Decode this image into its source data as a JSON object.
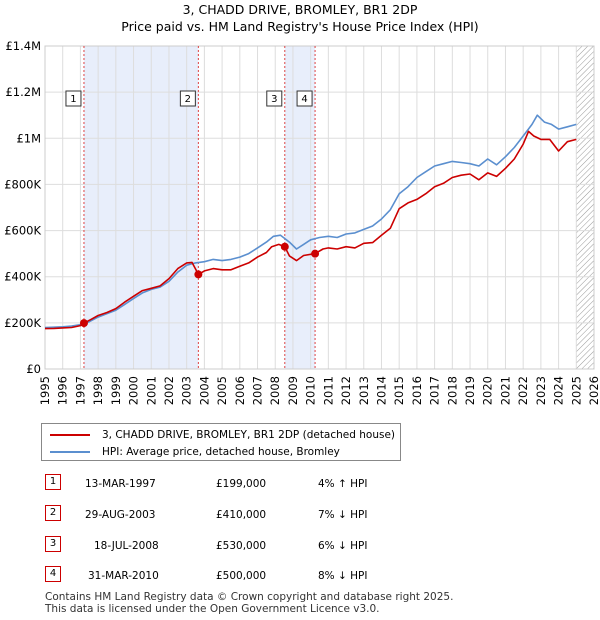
{
  "title": "3, CHADD DRIVE, BROMLEY, BR1 2DP",
  "subtitle": "Price paid vs. HM Land Registry's House Price Index (HPI)",
  "colors": {
    "price_paid": "#cc0000",
    "hpi": "#5b8fcf",
    "shade": "#e8eefb",
    "grid": "#dddddd"
  },
  "chart_data": {
    "type": "line",
    "title": "3, CHADD DRIVE, BROMLEY, BR1 2DP",
    "subtitle": "Price paid vs. HM Land Registry's House Price Index (HPI)",
    "xlim": [
      1995,
      2026
    ],
    "ylim": [
      0,
      1400000
    ],
    "x_ticks": [
      1995,
      1996,
      1997,
      1998,
      1999,
      2000,
      2001,
      2002,
      2003,
      2004,
      2005,
      2006,
      2007,
      2008,
      2009,
      2010,
      2011,
      2012,
      2013,
      2014,
      2015,
      2016,
      2017,
      2018,
      2019,
      2020,
      2021,
      2022,
      2023,
      2024,
      2025,
      2026
    ],
    "x_tick_labels": [
      "1995",
      "1996",
      "1997",
      "1998",
      "1999",
      "2000",
      "2001",
      "2002",
      "2003",
      "2004",
      "2005",
      "2006",
      "2007",
      "2008",
      "2009",
      "2010",
      "2011",
      "2012",
      "2013",
      "2014",
      "2015",
      "2016",
      "2017",
      "2018",
      "2019",
      "2020",
      "2021",
      "2022",
      "2023",
      "2024",
      "2025",
      "2026"
    ],
    "y_ticks": [
      0,
      200000,
      400000,
      600000,
      800000,
      1000000,
      1200000,
      1400000
    ],
    "y_tick_labels": [
      "£0",
      "£200K",
      "£400K",
      "£600K",
      "£800K",
      "£1M",
      "£1.2M",
      "£1.4M"
    ],
    "shaded_ranges": [
      [
        1997.2,
        2003.66
      ],
      [
        2008.54,
        2010.25
      ]
    ],
    "future_hatch_from": 2025.0,
    "series": [
      {
        "name": "3, CHADD DRIVE, BROMLEY, BR1 2DP (detached house)",
        "color": "#cc0000",
        "x": [
          1995.0,
          1995.5,
          1996.0,
          1996.5,
          1997.0,
          1997.2,
          1997.6,
          1998.0,
          1998.5,
          1999.0,
          1999.5,
          2000.0,
          2000.5,
          2001.0,
          2001.5,
          2002.0,
          2002.5,
          2003.0,
          2003.3,
          2003.66,
          2004.0,
          2004.5,
          2005.0,
          2005.5,
          2006.0,
          2006.5,
          2007.0,
          2007.5,
          2007.8,
          2008.2,
          2008.54,
          2008.8,
          2009.2,
          2009.6,
          2010.25,
          2010.7,
          2011.0,
          2011.5,
          2012.0,
          2012.5,
          2013.0,
          2013.5,
          2014.0,
          2014.5,
          2015.0,
          2015.5,
          2016.0,
          2016.5,
          2017.0,
          2017.5,
          2018.0,
          2018.5,
          2019.0,
          2019.5,
          2020.0,
          2020.5,
          2021.0,
          2021.5,
          2022.0,
          2022.3,
          2022.6,
          2023.0,
          2023.5,
          2024.0,
          2024.5,
          2025.0
        ],
        "y": [
          175000,
          176000,
          178000,
          180000,
          188000,
          199000,
          215000,
          232000,
          245000,
          262000,
          290000,
          315000,
          340000,
          350000,
          360000,
          392000,
          435000,
          460000,
          462000,
          410000,
          425000,
          435000,
          430000,
          430000,
          445000,
          460000,
          485000,
          505000,
          530000,
          540000,
          530000,
          490000,
          470000,
          492000,
          500000,
          520000,
          525000,
          520000,
          530000,
          525000,
          545000,
          548000,
          580000,
          610000,
          695000,
          720000,
          735000,
          760000,
          790000,
          805000,
          830000,
          840000,
          845000,
          820000,
          850000,
          835000,
          870000,
          910000,
          975000,
          1030000,
          1010000,
          995000,
          995000,
          945000,
          985000,
          995000
        ]
      },
      {
        "name": "HPI: Average price, detached house, Bromley",
        "color": "#5b8fcf",
        "x": [
          1995.0,
          1995.5,
          1996.0,
          1996.5,
          1997.0,
          1997.5,
          1998.0,
          1998.5,
          1999.0,
          1999.5,
          2000.0,
          2000.5,
          2001.0,
          2001.5,
          2002.0,
          2002.5,
          2003.0,
          2003.5,
          2004.0,
          2004.5,
          2005.0,
          2005.5,
          2006.0,
          2006.5,
          2007.0,
          2007.5,
          2007.9,
          2008.3,
          2008.8,
          2009.2,
          2009.6,
          2010.0,
          2010.5,
          2011.0,
          2011.5,
          2012.0,
          2012.5,
          2013.0,
          2013.5,
          2014.0,
          2014.5,
          2015.0,
          2015.5,
          2016.0,
          2016.5,
          2017.0,
          2017.5,
          2018.0,
          2018.5,
          2019.0,
          2019.5,
          2020.0,
          2020.5,
          2021.0,
          2021.5,
          2022.0,
          2022.5,
          2022.8,
          2023.2,
          2023.6,
          2024.0,
          2024.5,
          2025.0
        ],
        "y": [
          180000,
          181000,
          183000,
          186000,
          192000,
          205000,
          225000,
          240000,
          255000,
          280000,
          305000,
          330000,
          345000,
          355000,
          380000,
          420000,
          450000,
          460000,
          465000,
          475000,
          470000,
          475000,
          485000,
          500000,
          525000,
          550000,
          575000,
          580000,
          550000,
          520000,
          540000,
          560000,
          570000,
          575000,
          570000,
          585000,
          590000,
          605000,
          620000,
          650000,
          690000,
          760000,
          790000,
          830000,
          855000,
          880000,
          890000,
          900000,
          895000,
          890000,
          880000,
          910000,
          885000,
          920000,
          960000,
          1010000,
          1060000,
          1100000,
          1070000,
          1060000,
          1040000,
          1050000,
          1060000
        ]
      }
    ],
    "sale_points": [
      {
        "label": "1",
        "x": 1997.2,
        "y": 199000
      },
      {
        "label": "2",
        "x": 2003.66,
        "y": 410000
      },
      {
        "label": "3",
        "x": 2008.54,
        "y": 530000
      },
      {
        "label": "4",
        "x": 2010.25,
        "y": 500000
      }
    ]
  },
  "legend": {
    "items": [
      {
        "label": "3, CHADD DRIVE, BROMLEY, BR1 2DP (detached house)",
        "color": "#cc0000"
      },
      {
        "label": "HPI: Average price, detached house, Bromley",
        "color": "#5b8fcf"
      }
    ]
  },
  "transactions": [
    {
      "num": "1",
      "date": "13-MAR-1997",
      "price": "£199,000",
      "hpi": "4% ↑ HPI"
    },
    {
      "num": "2",
      "date": "29-AUG-2003",
      "price": "£410,000",
      "hpi": "7% ↓ HPI"
    },
    {
      "num": "3",
      "date": "18-JUL-2008",
      "price": "£530,000",
      "hpi": "6% ↓ HPI"
    },
    {
      "num": "4",
      "date": "31-MAR-2010",
      "price": "£500,000",
      "hpi": "8% ↓ HPI"
    }
  ],
  "footer": {
    "line1": "Contains HM Land Registry data © Crown copyright and database right 2025.",
    "line2": "This data is licensed under the Open Government Licence v3.0."
  }
}
